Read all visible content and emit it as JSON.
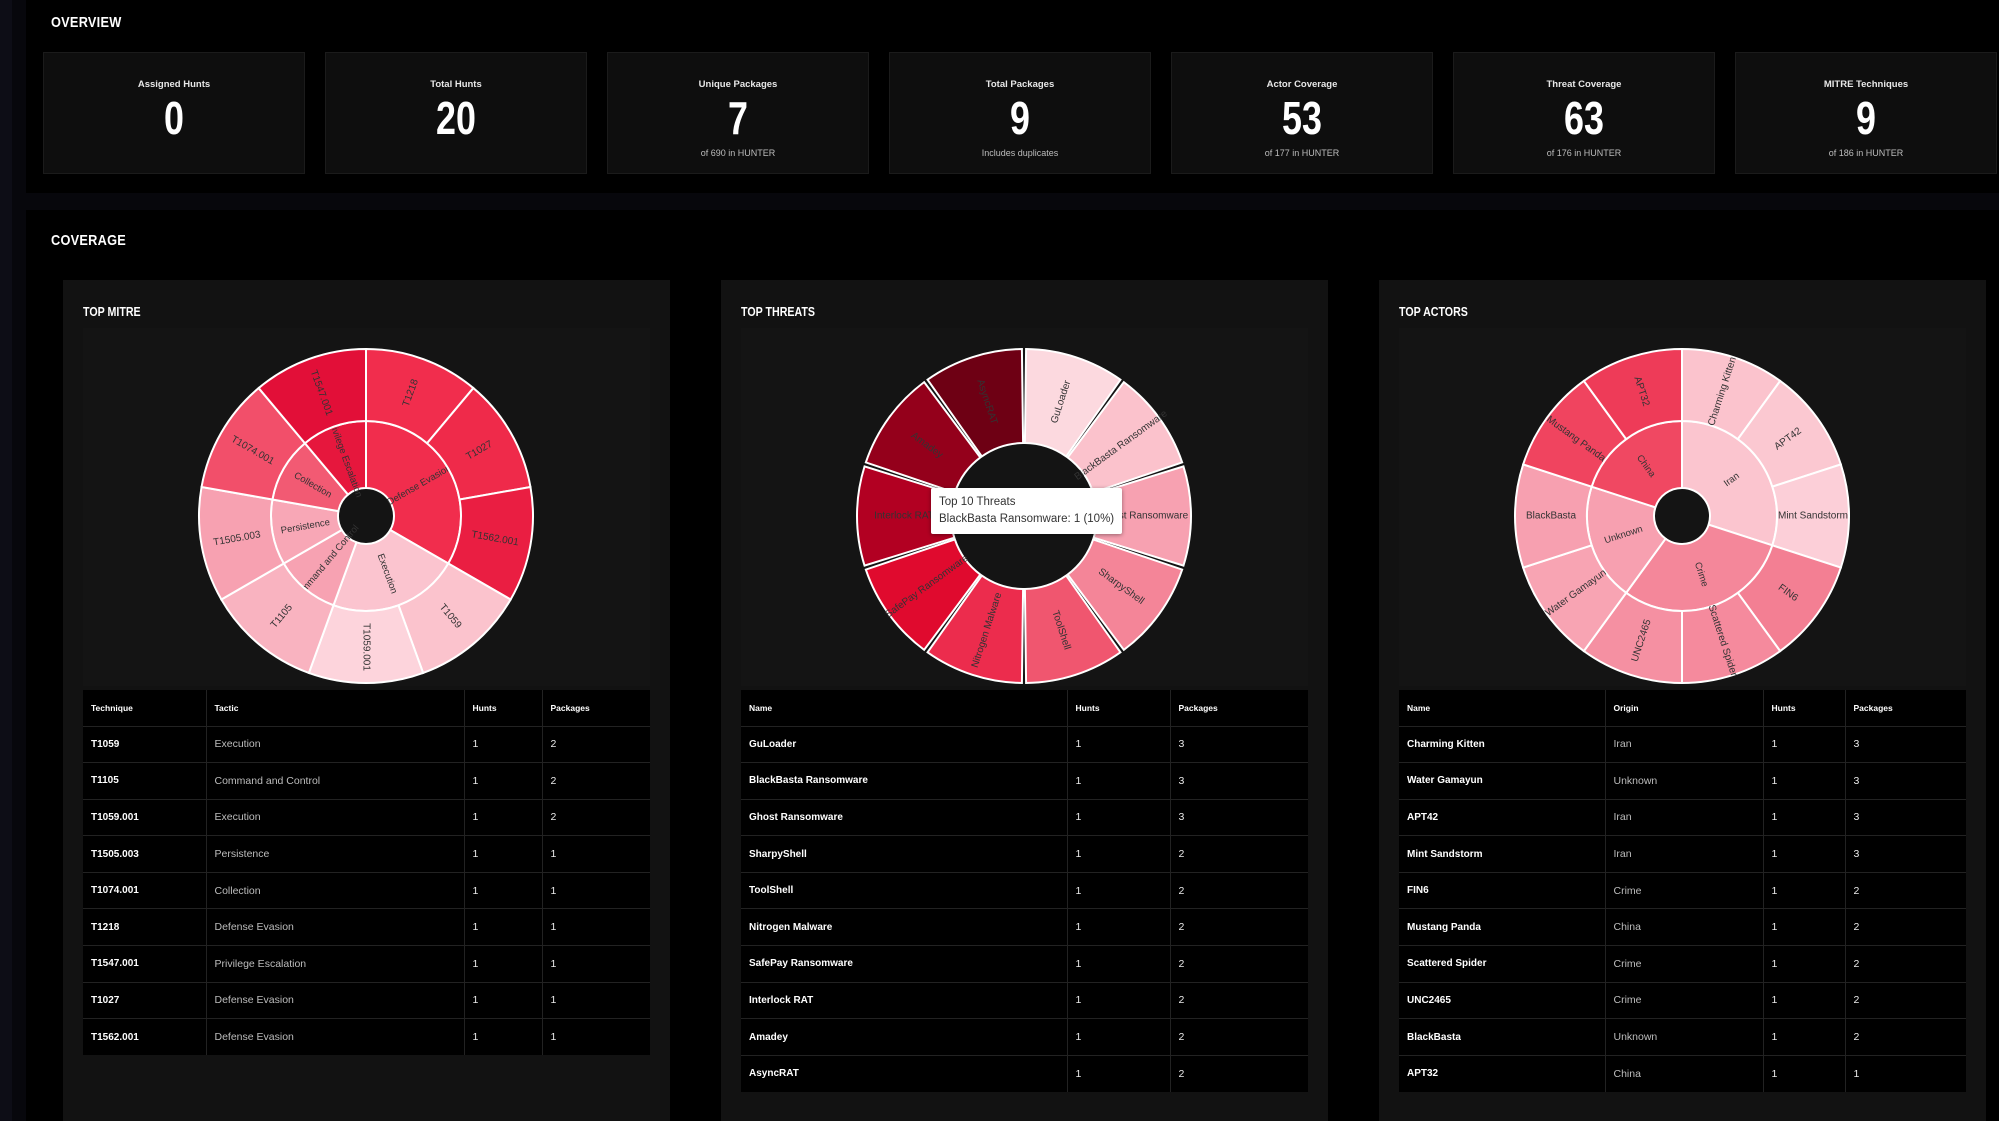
{
  "overview": {
    "title": "Overview",
    "cards": [
      {
        "label": "Assigned Hunts",
        "value": "0",
        "sub": ""
      },
      {
        "label": "Total Hunts",
        "value": "20",
        "sub": ""
      },
      {
        "label": "Unique Packages",
        "value": "7",
        "sub": "of 690 in HUNTER"
      },
      {
        "label": "Total Packages",
        "value": "9",
        "sub": "Includes duplicates"
      },
      {
        "label": "Actor Coverage",
        "value": "53",
        "sub": "of 177 in HUNTER"
      },
      {
        "label": "Threat Coverage",
        "value": "63",
        "sub": "of 176 in HUNTER"
      },
      {
        "label": "MITRE Techniques",
        "value": "9",
        "sub": "of 186 in HUNTER"
      }
    ]
  },
  "coverage": {
    "title": "Coverage",
    "panels": [
      {
        "title": "Top MITRE",
        "headers": [
          "Technique",
          "Tactic",
          "Hunts",
          "Packages"
        ],
        "rows": [
          [
            "T1059",
            "Execution",
            "1",
            "2"
          ],
          [
            "T1105",
            "Command and Control",
            "1",
            "2"
          ],
          [
            "T1059.001",
            "Execution",
            "1",
            "2"
          ],
          [
            "T1505.003",
            "Persistence",
            "1",
            "1"
          ],
          [
            "T1074.001",
            "Collection",
            "1",
            "1"
          ],
          [
            "T1218",
            "Defense Evasion",
            "1",
            "1"
          ],
          [
            "T1547.001",
            "Privilege Escalation",
            "1",
            "1"
          ],
          [
            "T1027",
            "Defense Evasion",
            "1",
            "1"
          ],
          [
            "T1562.001",
            "Defense Evasion",
            "1",
            "1"
          ]
        ]
      },
      {
        "title": "Top Threats",
        "headers": [
          "Name",
          "Hunts",
          "Packages"
        ],
        "rows": [
          [
            "GuLoader",
            "1",
            "3"
          ],
          [
            "BlackBasta Ransomware",
            "1",
            "3"
          ],
          [
            "Ghost Ransomware",
            "1",
            "3"
          ],
          [
            "SharpyShell",
            "1",
            "2"
          ],
          [
            "ToolShell",
            "1",
            "2"
          ],
          [
            "Nitrogen Malware",
            "1",
            "2"
          ],
          [
            "SafePay Ransomware",
            "1",
            "2"
          ],
          [
            "Interlock RAT",
            "1",
            "2"
          ],
          [
            "Amadey",
            "1",
            "2"
          ],
          [
            "AsyncRAT",
            "1",
            "2"
          ]
        ],
        "tooltip": {
          "title": "Top 10 Threats",
          "text": "BlackBasta Ransomware: 1 (10%)"
        }
      },
      {
        "title": "Top Actors",
        "headers": [
          "Name",
          "Origin",
          "Hunts",
          "Packages"
        ],
        "rows": [
          [
            "Charming Kitten",
            "Iran",
            "1",
            "3"
          ],
          [
            "Water Gamayun",
            "Unknown",
            "1",
            "3"
          ],
          [
            "APT42",
            "Iran",
            "1",
            "3"
          ],
          [
            "Mint Sandstorm",
            "Iran",
            "1",
            "3"
          ],
          [
            "FIN6",
            "Crime",
            "1",
            "2"
          ],
          [
            "Mustang Panda",
            "China",
            "1",
            "2"
          ],
          [
            "Scattered Spider",
            "Crime",
            "1",
            "2"
          ],
          [
            "UNC2465",
            "Crime",
            "1",
            "2"
          ],
          [
            "BlackBasta",
            "Unknown",
            "1",
            "2"
          ],
          [
            "APT32",
            "China",
            "1",
            "1"
          ]
        ]
      }
    ]
  },
  "chart_data": [
    {
      "type": "sunburst",
      "title": "Top MITRE",
      "inner": [
        {
          "name": "Defense Evasion",
          "value": 3,
          "color": "#f12d4d"
        },
        {
          "name": "Execution",
          "value": 2,
          "color": "#fbc4cf"
        },
        {
          "name": "Command and Control",
          "value": 1,
          "color": "#f7a2b2"
        },
        {
          "name": "Persistence",
          "value": 1,
          "color": "#f8a7b6"
        },
        {
          "name": "Collection",
          "value": 1,
          "color": "#f25a73"
        },
        {
          "name": "Privilege Escalation",
          "value": 1,
          "color": "#e6173d"
        }
      ],
      "outer": [
        {
          "name": "T1218",
          "value": 1,
          "color": "#f12d4d"
        },
        {
          "name": "T1027",
          "value": 1,
          "color": "#ef2a4a"
        },
        {
          "name": "T1562.001",
          "value": 1,
          "color": "#ea1e42"
        },
        {
          "name": "T1059",
          "value": 1,
          "color": "#fbc3cd"
        },
        {
          "name": "T1059.001",
          "value": 1,
          "color": "#fdd4dc"
        },
        {
          "name": "T1105",
          "value": 1,
          "color": "#f9b3c0"
        },
        {
          "name": "T1505.003",
          "value": 1,
          "color": "#f7a1b1"
        },
        {
          "name": "T1074.001",
          "value": 1,
          "color": "#f24f6a"
        },
        {
          "name": "T1547.001",
          "value": 1,
          "color": "#e20f38"
        }
      ],
      "inner_labels": [
        "Defense Evasion",
        "Execution",
        "Command and Control",
        "Persistence",
        "Collection",
        "Privilege Escalation"
      ]
    },
    {
      "type": "donut",
      "title": "Top 10 Threats",
      "slices": [
        {
          "name": "GuLoader",
          "value": 1,
          "color": "#fcd9df"
        },
        {
          "name": "BlackBasta Ransomware",
          "value": 1,
          "color": "#fbc2cc"
        },
        {
          "name": "Ghost Ransomware",
          "value": 1,
          "color": "#f7a1b1"
        },
        {
          "name": "SharpyShell",
          "value": 1,
          "color": "#f48598"
        },
        {
          "name": "ToolShell",
          "value": 1,
          "color": "#f0566f"
        },
        {
          "name": "Nitrogen Malware",
          "value": 1,
          "color": "#ec2c4d"
        },
        {
          "name": "SafePay Ransomware",
          "value": 1,
          "color": "#e00a2e"
        },
        {
          "name": "Interlock RAT",
          "value": 1,
          "color": "#b20022"
        },
        {
          "name": "Amadey",
          "value": 1,
          "color": "#94001b"
        },
        {
          "name": "AsyncRAT",
          "value": 1,
          "color": "#6e0014"
        }
      ]
    },
    {
      "type": "sunburst",
      "title": "Top Actors",
      "inner": [
        {
          "name": "Iran",
          "value": 3,
          "color": "#fbc5cf"
        },
        {
          "name": "Crime",
          "value": 3,
          "color": "#f4879a"
        },
        {
          "name": "Unknown",
          "value": 2,
          "color": "#f7a0b0"
        },
        {
          "name": "China",
          "value": 2,
          "color": "#f04862"
        }
      ],
      "outer": [
        {
          "name": "Charming Kitten",
          "value": 1,
          "color": "#fbc3cd"
        },
        {
          "name": "APT42",
          "value": 1,
          "color": "#fbc8d1"
        },
        {
          "name": "Mint Sandstorm",
          "value": 1,
          "color": "#fccfd8"
        },
        {
          "name": "FIN6",
          "value": 1,
          "color": "#f37f93"
        },
        {
          "name": "Scattered Spider",
          "value": 1,
          "color": "#f58a9d"
        },
        {
          "name": "UNC2465",
          "value": 1,
          "color": "#f590a2"
        },
        {
          "name": "Water Gamayun",
          "value": 1,
          "color": "#f8a4b3"
        },
        {
          "name": "BlackBasta",
          "value": 1,
          "color": "#f7a0b0"
        },
        {
          "name": "Mustang Panda",
          "value": 1,
          "color": "#f0445f"
        },
        {
          "name": "APT32",
          "value": 1,
          "color": "#ee3b58"
        }
      ]
    }
  ]
}
